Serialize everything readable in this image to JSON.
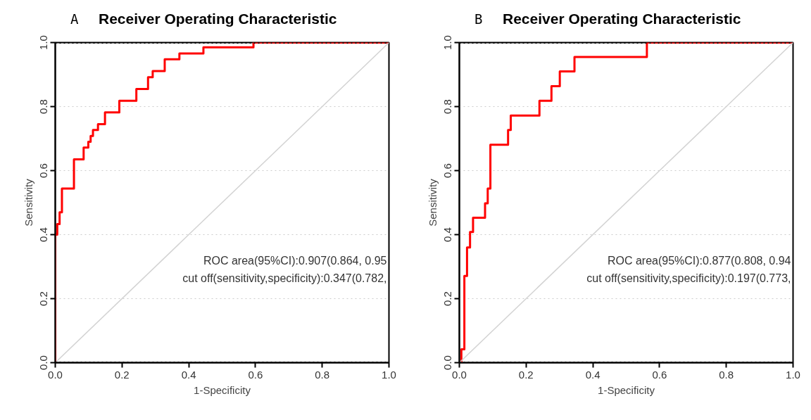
{
  "chart_data": [
    {
      "type": "step",
      "title": "Receiver Operating Characteristic",
      "xlabel": "1-Specificity",
      "ylabel": "Sensitivity",
      "xlim": [
        0,
        1
      ],
      "ylim": [
        0,
        1
      ],
      "xticks": [
        {
          "value": 0,
          "label": "0.0"
        },
        {
          "value": 0.2,
          "label": "0.2"
        },
        {
          "value": 0.4,
          "label": "0.4"
        },
        {
          "value": 0.6,
          "label": "0.6"
        },
        {
          "value": 0.8,
          "label": "0.8"
        },
        {
          "value": 1,
          "label": "1.0"
        }
      ],
      "yticks": [
        {
          "value": 0,
          "label": "0.0"
        },
        {
          "value": 0.2,
          "label": "0.2"
        },
        {
          "value": 0.4,
          "label": "0.4"
        },
        {
          "value": 0.6,
          "label": "0.6"
        },
        {
          "value": 0.8,
          "label": "0.8"
        },
        {
          "value": 1,
          "label": "1.0"
        }
      ],
      "grid": "y",
      "series": [
        {
          "color": "#ff0000",
          "x": [
            0,
            0,
            0.006,
            0.013,
            0.02,
            0.056,
            0.085,
            0.099,
            0.106,
            0.113,
            0.128,
            0.149,
            0.192,
            0.243,
            0.278,
            0.292,
            0.328,
            0.372,
            0.444,
            0.594,
            1
          ],
          "values": [
            0,
            0.4,
            0.433,
            0.47,
            0.544,
            0.635,
            0.672,
            0.69,
            0.708,
            0.727,
            0.745,
            0.782,
            0.818,
            0.855,
            0.892,
            0.911,
            0.948,
            0.966,
            0.985,
            1.0,
            1.0
          ]
        },
        {
          "type": "line",
          "color": "#d3d3d3",
          "x": [
            0,
            1
          ],
          "values": [
            0,
            1
          ]
        }
      ],
      "ref_lines": [
        {
          "axis": "y",
          "value": 0,
          "color": "#000000",
          "line_style": "dotted"
        },
        {
          "axis": "y",
          "value": 1,
          "color": "#000000",
          "line_style": "dotted"
        }
      ],
      "annotations": [
        "A",
        "ROC area(95%CI):0.907(0.864, 0.95",
        "cut off(sensitivity,specificity):0.347(0.782,"
      ]
    },
    {
      "type": "step",
      "title": "Receiver Operating Characteristic",
      "xlabel": "1-Specificity",
      "ylabel": "Sensitivity",
      "xlim": [
        0,
        1
      ],
      "ylim": [
        0,
        1
      ],
      "xticks": [
        {
          "value": 0,
          "label": "0.0"
        },
        {
          "value": 0.2,
          "label": "0.2"
        },
        {
          "value": 0.4,
          "label": "0.4"
        },
        {
          "value": 0.6,
          "label": "0.6"
        },
        {
          "value": 0.8,
          "label": "0.8"
        },
        {
          "value": 1,
          "label": "1.0"
        }
      ],
      "yticks": [
        {
          "value": 0,
          "label": "0.0"
        },
        {
          "value": 0.2,
          "label": "0.2"
        },
        {
          "value": 0.4,
          "label": "0.4"
        },
        {
          "value": 0.6,
          "label": "0.6"
        },
        {
          "value": 0.8,
          "label": "0.8"
        },
        {
          "value": 1,
          "label": "1.0"
        }
      ],
      "grid": "y",
      "series": [
        {
          "color": "#ff0000",
          "x": [
            0,
            0.006,
            0.015,
            0.023,
            0.032,
            0.041,
            0.077,
            0.085,
            0.093,
            0.146,
            0.154,
            0.24,
            0.276,
            0.301,
            0.345,
            0.562,
            1
          ],
          "values": [
            0,
            0.042,
            0.271,
            0.36,
            0.408,
            0.453,
            0.498,
            0.544,
            0.681,
            0.727,
            0.772,
            0.818,
            0.864,
            0.91,
            0.955,
            1.0,
            1.0
          ]
        },
        {
          "type": "line",
          "color": "#d3d3d3",
          "x": [
            0,
            1
          ],
          "values": [
            0,
            1
          ]
        }
      ],
      "ref_lines": [
        {
          "axis": "y",
          "value": 0,
          "color": "#000000",
          "line_style": "dotted"
        },
        {
          "axis": "y",
          "value": 1,
          "color": "#000000",
          "line_style": "dotted"
        }
      ],
      "annotations": [
        "B",
        "ROC area(95%CI):0.877(0.808, 0.94",
        "cut off(sensitivity,specificity):0.197(0.773,"
      ]
    }
  ]
}
